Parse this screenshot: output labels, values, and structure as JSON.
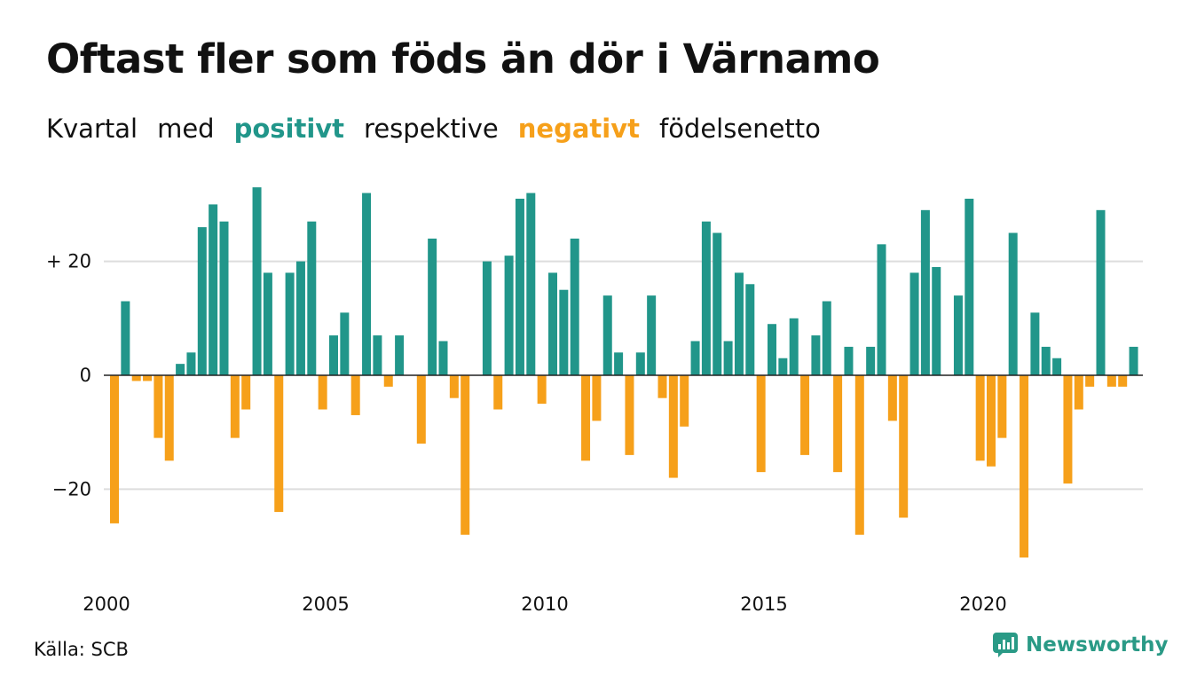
{
  "title": "Oftast fler som föds än dör i Värnamo",
  "subtitle": {
    "w1": "Kvartal",
    "w2": "med",
    "positive": "positivt",
    "w3": "respektive",
    "negative": "negativt",
    "w4": "födelsenetto"
  },
  "colors": {
    "positive": "#21968a",
    "negative": "#f6a01a",
    "grid": "#dddddd",
    "brand": "#2a9a86"
  },
  "source": "Källa: SCB",
  "brand": {
    "name": "Newsworthy",
    "icon": "newsworthy-logo-icon"
  },
  "chart_data": {
    "type": "bar",
    "xlabel": "",
    "ylabel": "",
    "ylim": [
      -36,
      36
    ],
    "y_ticks": [
      {
        "value": 20,
        "label": "+ 20"
      },
      {
        "value": 0,
        "label": "0"
      },
      {
        "value": -20,
        "label": "−20"
      }
    ],
    "x_ticks": [
      "2000",
      "2005",
      "2010",
      "2015",
      "2020"
    ],
    "grid": true,
    "start_year": 2000,
    "values": [
      -26,
      13,
      -1,
      -1,
      -11,
      -15,
      2,
      4,
      26,
      30,
      27,
      -11,
      -6,
      33,
      18,
      -24,
      18,
      20,
      27,
      -6,
      7,
      11,
      -7,
      32,
      7,
      -2,
      7,
      0,
      -12,
      24,
      6,
      -4,
      -28,
      0,
      20,
      -6,
      21,
      31,
      32,
      -5,
      18,
      15,
      24,
      -15,
      -8,
      14,
      4,
      -14,
      4,
      14,
      -4,
      -18,
      -9,
      6,
      27,
      25,
      6,
      18,
      16,
      -17,
      9,
      3,
      10,
      -14,
      7,
      13,
      -17,
      5,
      -28,
      5,
      23,
      -8,
      -25,
      18,
      29,
      19,
      0,
      14,
      31,
      -15,
      -16,
      -11,
      25,
      -32,
      11,
      5,
      3,
      -19,
      -6,
      -2,
      29,
      -2,
      -2,
      5
    ]
  }
}
